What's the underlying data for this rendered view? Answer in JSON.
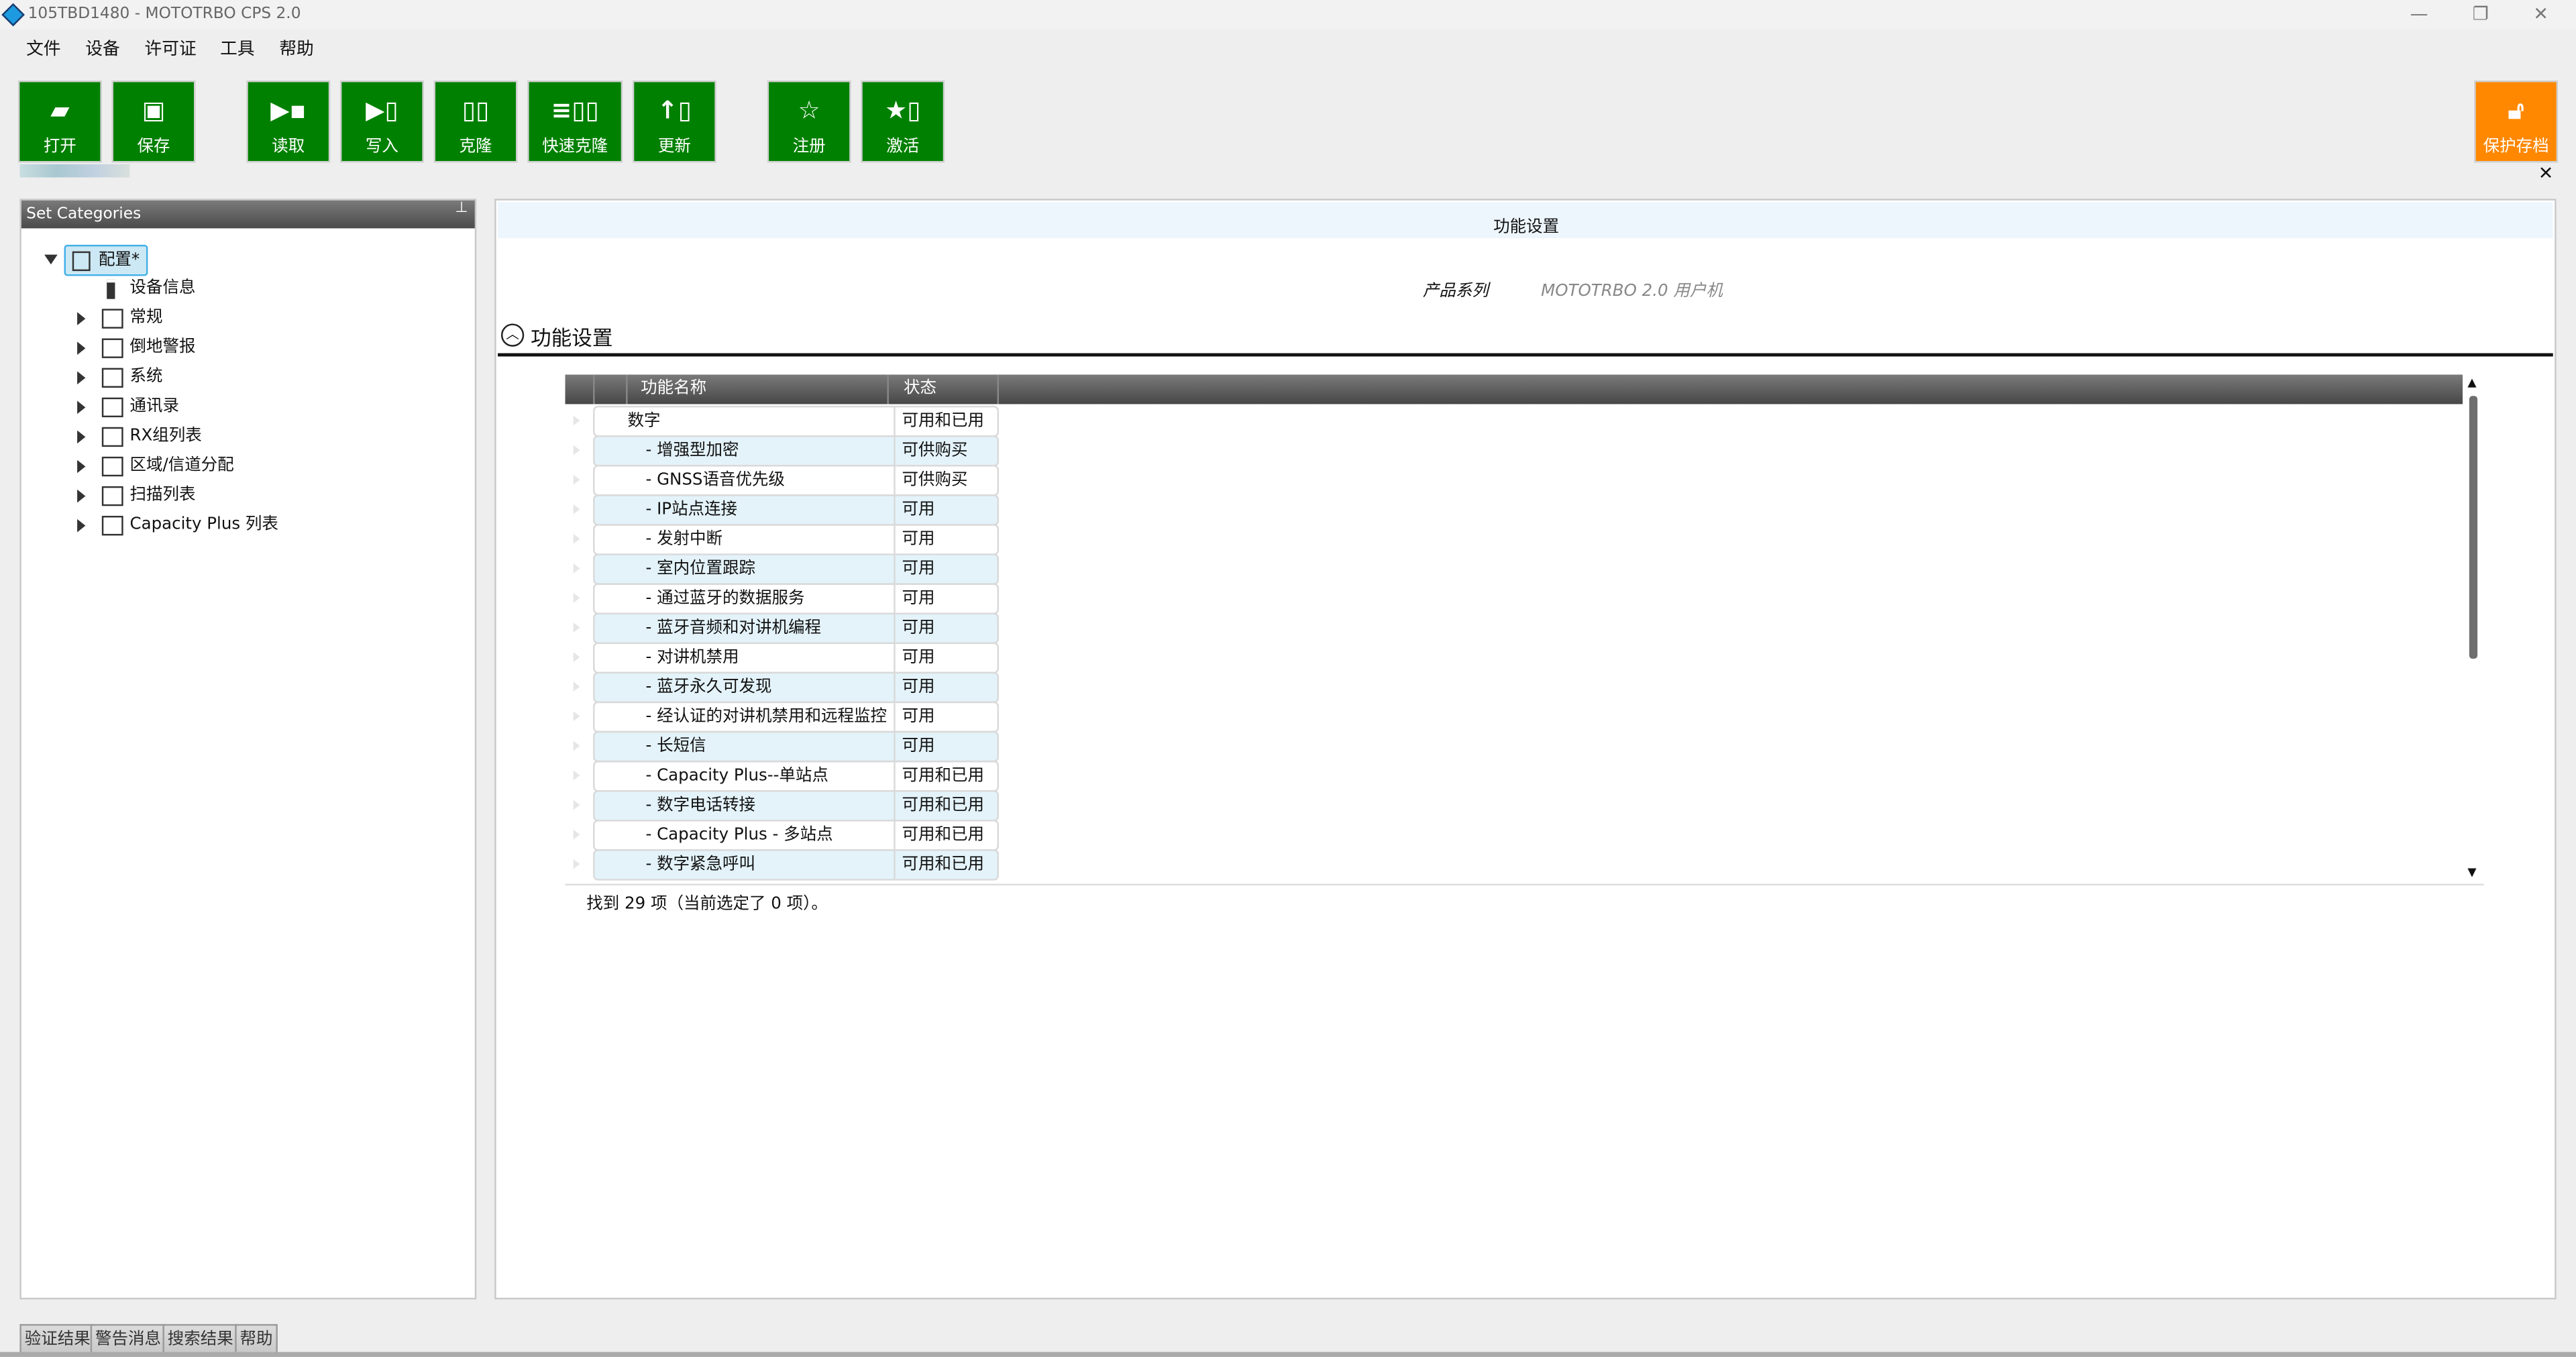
{
  "window": {
    "title": "105TBD1480 - MOTOTRBO CPS 2.0",
    "app_icon": "cps-diamond-icon",
    "controls": [
      "minimize",
      "restore",
      "close"
    ]
  },
  "menu": [
    "文件",
    "设备",
    "许可证",
    "工具",
    "帮助"
  ],
  "toolbar": {
    "buttons": [
      {
        "label": "打开",
        "icon": "folder-open-icon"
      },
      {
        "label": "保存",
        "icon": "save-icon"
      },
      {
        "label": "读取",
        "icon": "read-radio-icon"
      },
      {
        "label": "写入",
        "icon": "write-radio-icon"
      },
      {
        "label": "克隆",
        "icon": "clone-icon"
      },
      {
        "label": "快速克隆",
        "icon": "quick-clone-icon"
      },
      {
        "label": "更新",
        "icon": "update-icon"
      },
      {
        "label": "注册",
        "icon": "star-icon"
      },
      {
        "label": "激活",
        "icon": "activate-icon"
      }
    ],
    "protect_archive": {
      "label": "保护存档",
      "icon": "unlock-icon",
      "color": "#ff8800"
    },
    "accent_color": "#008000"
  },
  "left_panel": {
    "title": "Set Categories",
    "root": {
      "label": "配置*",
      "expanded": true,
      "selected": true
    },
    "items": [
      {
        "label": "设备信息",
        "icon": "radio-icon",
        "expandable": false
      },
      {
        "label": "常规",
        "expandable": true
      },
      {
        "label": "倒地警报",
        "expandable": true
      },
      {
        "label": "系统",
        "expandable": true
      },
      {
        "label": "通讯录",
        "expandable": true
      },
      {
        "label": "RX组列表",
        "expandable": true
      },
      {
        "label": "区域/信道分配",
        "expandable": true
      },
      {
        "label": "扫描列表",
        "expandable": true
      },
      {
        "label": "Capacity Plus 列表",
        "expandable": true
      }
    ]
  },
  "main": {
    "header_title": "功能设置",
    "product_line_label": "产品系列",
    "product_line_value": "MOTOTRBO 2.0 用户机",
    "section_title": "功能设置",
    "grid": {
      "columns": [
        "功能名称",
        "状态"
      ],
      "rows": [
        {
          "name": "数字",
          "status": "可用和已用",
          "child": false
        },
        {
          "name": "- 增强型加密",
          "status": "可供购买",
          "child": true
        },
        {
          "name": "- GNSS语音优先级",
          "status": "可供购买",
          "child": true
        },
        {
          "name": "- IP站点连接",
          "status": "可用",
          "child": true
        },
        {
          "name": "- 发射中断",
          "status": "可用",
          "child": true
        },
        {
          "name": "- 室内位置跟踪",
          "status": "可用",
          "child": true
        },
        {
          "name": "- 通过蓝牙的数据服务",
          "status": "可用",
          "child": true
        },
        {
          "name": "- 蓝牙音频和对讲机编程",
          "status": "可用",
          "child": true
        },
        {
          "name": "- 对讲机禁用",
          "status": "可用",
          "child": true
        },
        {
          "name": "- 蓝牙永久可发现",
          "status": "可用",
          "child": true
        },
        {
          "name": "- 经认证的对讲机禁用和远程监控",
          "status": "可用",
          "child": true
        },
        {
          "name": "- 长短信",
          "status": "可用",
          "child": true
        },
        {
          "name": "- Capacity Plus--单站点",
          "status": "可用和已用",
          "child": true
        },
        {
          "name": "- 数字电话转接",
          "status": "可用和已用",
          "child": true
        },
        {
          "name": "- Capacity Plus - 多站点",
          "status": "可用和已用",
          "child": true
        },
        {
          "name": "- 数字紧急呼叫",
          "status": "可用和已用",
          "child": true
        }
      ]
    },
    "status_text": "找到 29 项（当前选定了 0 项）。"
  },
  "bottom_tabs": [
    "验证结果",
    "警告消息",
    "搜索结果",
    "帮助"
  ]
}
